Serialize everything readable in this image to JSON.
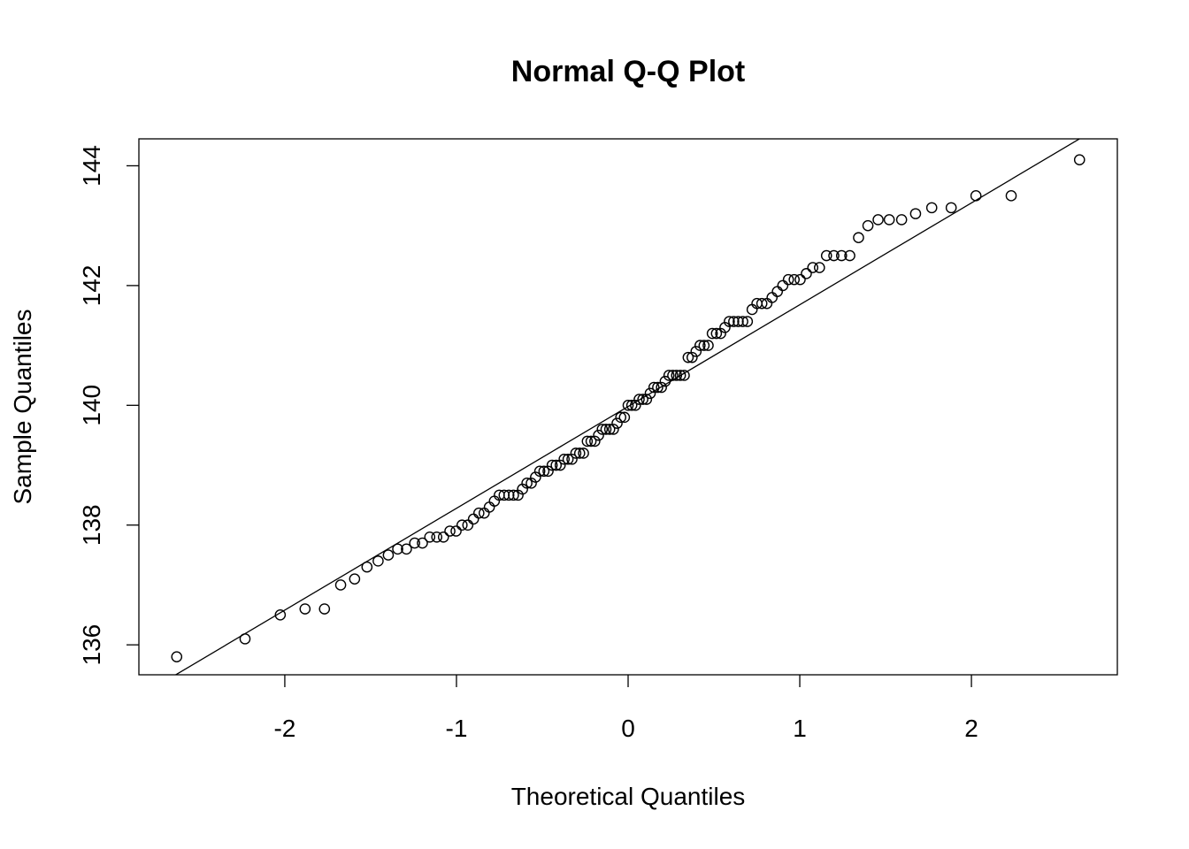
{
  "chart_data": {
    "type": "scatter",
    "title": "Normal Q-Q Plot",
    "xlabel": "Theoretical Quantiles",
    "ylabel": "Sample Quantiles",
    "xlim": [
      -2.85,
      2.85
    ],
    "ylim": [
      135.5,
      144.45
    ],
    "x_ticks": [
      -2,
      -1,
      0,
      1,
      2
    ],
    "x_tick_labels": [
      "-2",
      "-1",
      "0",
      "1",
      "2"
    ],
    "y_ticks": [
      136,
      138,
      140,
      142,
      144
    ],
    "y_tick_labels": [
      "136",
      "138",
      "140",
      "142",
      "144"
    ],
    "grid": false,
    "legend": "none",
    "reference_line": {
      "slope": 1.7,
      "intercept": 139.98
    },
    "marker": "open-circle",
    "colors": {
      "points": "#000000",
      "line": "#000000",
      "frame": "#000000"
    },
    "sample_values": [
      135.8,
      136.1,
      136.5,
      136.6,
      136.6,
      137.0,
      137.1,
      137.3,
      137.4,
      137.5,
      137.6,
      137.6,
      137.7,
      137.7,
      137.8,
      137.8,
      137.8,
      137.9,
      137.9,
      138.0,
      138.0,
      138.1,
      138.2,
      138.2,
      138.3,
      138.4,
      138.5,
      138.5,
      138.5,
      138.5,
      138.5,
      138.6,
      138.7,
      138.7,
      138.8,
      138.9,
      138.9,
      138.9,
      139.0,
      139.0,
      139.0,
      139.1,
      139.1,
      139.1,
      139.2,
      139.2,
      139.2,
      139.4,
      139.4,
      139.4,
      139.5,
      139.6,
      139.6,
      139.6,
      139.6,
      139.7,
      139.8,
      139.8,
      140.0,
      140.0,
      140.0,
      140.1,
      140.1,
      140.1,
      140.2,
      140.3,
      140.3,
      140.3,
      140.4,
      140.5,
      140.5,
      140.5,
      140.5,
      140.5,
      140.8,
      140.8,
      140.9,
      141.0,
      141.0,
      141.0,
      141.2,
      141.2,
      141.2,
      141.3,
      141.4,
      141.4,
      141.4,
      141.4,
      141.4,
      141.6,
      141.7,
      141.7,
      141.7,
      141.8,
      141.9,
      142.0,
      142.1,
      142.1,
      142.1,
      142.2,
      142.3,
      142.3,
      142.5,
      142.5,
      142.5,
      142.5,
      142.8,
      143.0,
      143.1,
      143.1,
      143.1,
      143.2,
      143.3,
      143.3,
      143.5,
      143.5,
      144.1
    ]
  }
}
